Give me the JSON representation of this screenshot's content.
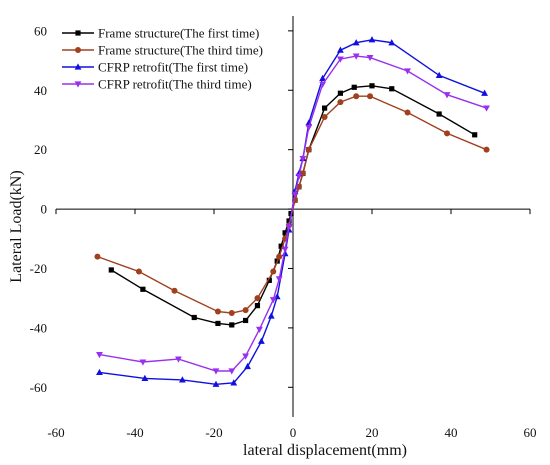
{
  "chart_data": {
    "type": "line",
    "title": "",
    "xlabel": "lateral displacement(mm)",
    "ylabel": "Lateral Load(kN)",
    "xlim": [
      -60,
      60
    ],
    "ylim": [
      -70,
      65
    ],
    "xticks": [
      -60,
      -40,
      -20,
      0,
      20,
      40,
      60
    ],
    "yticks": [
      -60,
      -40,
      -20,
      0,
      20,
      40,
      60
    ],
    "grid": false,
    "legend_position": "top-left",
    "series": [
      {
        "name": "Frame structure(The first time)",
        "color": "#000000",
        "marker": "square",
        "x": [
          -46,
          -38,
          -25,
          -19,
          -15.5,
          -12,
          -9,
          -6,
          -4,
          -3,
          -2,
          -1,
          -0.5,
          0.5,
          1.5,
          2.5,
          4,
          8,
          12,
          15.5,
          20,
          25,
          37,
          46
        ],
        "y": [
          -20.5,
          -27,
          -36.5,
          -38.5,
          -39,
          -37.5,
          -32.5,
          -24,
          -17.5,
          -12.5,
          -8,
          -4,
          -1.5,
          3,
          7.5,
          12,
          20,
          34,
          39,
          41,
          41.5,
          40.5,
          32,
          25
        ]
      },
      {
        "name": "Frame structure(The third time)",
        "color": "#A0401E",
        "marker": "circle",
        "x": [
          -49.5,
          -39,
          -30,
          -19,
          -15.5,
          -12,
          -9,
          -5,
          -3.5,
          -2,
          -1,
          0.5,
          1.5,
          2.5,
          4,
          8,
          12,
          16,
          19.5,
          29,
          39,
          49
        ],
        "y": [
          -16,
          -21,
          -27.5,
          -34.5,
          -35,
          -34,
          -30,
          -21,
          -16,
          -10,
          -5.5,
          3,
          7.5,
          12,
          20,
          31,
          36,
          38,
          38,
          32.5,
          25.5,
          20
        ]
      },
      {
        "name": "CFRP retrofit(The first time)",
        "color": "#1010E0",
        "marker": "triangle-up",
        "x": [
          -49,
          -37.5,
          -28,
          -19.5,
          -15,
          -11.5,
          -8,
          -5.5,
          -4,
          -2,
          -1,
          0.5,
          1.5,
          2.5,
          4,
          7.5,
          12,
          16,
          20,
          25,
          37,
          48.5
        ],
        "y": [
          -55,
          -57,
          -57.5,
          -59,
          -58.5,
          -53,
          -44.5,
          -36,
          -29.5,
          -15,
          -7,
          6,
          12,
          17,
          29,
          44,
          53.5,
          56,
          57,
          56,
          45,
          39
        ]
      },
      {
        "name": "CFRP retrofit(The third time)",
        "color": "#9A30EE",
        "marker": "triangle-down",
        "x": [
          -49,
          -38,
          -29,
          -19.5,
          -15.5,
          -12,
          -8.5,
          -5,
          -3.5,
          -2,
          -1,
          0.5,
          1.5,
          2.5,
          4,
          7.5,
          12,
          16,
          19.5,
          29,
          39,
          49
        ],
        "y": [
          -49,
          -51.5,
          -50.5,
          -54.5,
          -54.5,
          -49.5,
          -40.5,
          -30.5,
          -23.5,
          -13.5,
          -6,
          5,
          11,
          17,
          27.5,
          42,
          50.5,
          51.5,
          51,
          46.5,
          38.5,
          34
        ]
      }
    ]
  }
}
